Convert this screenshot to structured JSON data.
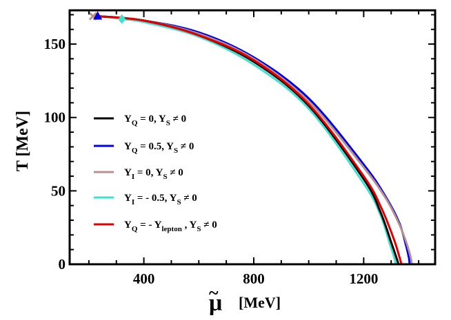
{
  "chart_data": {
    "type": "line",
    "xlabel": "μ̃ [MeV]",
    "ylabel": "T [MeV]",
    "xlabel_symbol": "μ",
    "xlabel_unit": "[MeV]",
    "xlim": [
      130,
      1460
    ],
    "ylim": [
      0,
      173
    ],
    "xticks": [
      400,
      800,
      1200
    ],
    "yticks": [
      0,
      50,
      100,
      150
    ],
    "xtick_labels": [
      "400",
      "800",
      "1200"
    ],
    "ytick_labels": [
      "0",
      "50",
      "100",
      "150"
    ],
    "grid": false,
    "legend_position": "center-left",
    "series": [
      {
        "name": "Y_Q = 0, Y_S ≠ 0",
        "legend": [
          "Y",
          "Q",
          " = 0, Y",
          "S",
          " ≠ 0"
        ],
        "color": "#000000",
        "marker": "triangle",
        "x": [
          232,
          400,
          600,
          800,
          1000,
          1200,
          1260,
          1300,
          1320,
          1325,
          1326
        ],
        "y": [
          169,
          166,
          156,
          138,
          108,
          58,
          36,
          15,
          4,
          1,
          0
        ]
      },
      {
        "name": "Y_Q = 0.5, Y_S ≠ 0",
        "legend": [
          "Y",
          "Q",
          " = 0.5, Y",
          "S",
          " ≠ 0"
        ],
        "color": "#0000e6",
        "marker": "triangle",
        "x": [
          232,
          400,
          600,
          800,
          1000,
          1200,
          1280,
          1330,
          1355,
          1365,
          1367
        ],
        "y": [
          169,
          166,
          158,
          141,
          113,
          68,
          46,
          28,
          12,
          4,
          0
        ]
      },
      {
        "name": "Y_I = 0, Y_S ≠ 0",
        "legend": [
          "Y",
          "I",
          " = 0, Y",
          "S",
          " ≠  0"
        ],
        "color": "#b8918c",
        "marker": "cross",
        "x": [
          215,
          400,
          600,
          800,
          1000,
          1200,
          1280,
          1330,
          1360,
          1372,
          1375
        ],
        "y": [
          169,
          166,
          157,
          140,
          111,
          66,
          45,
          27,
          12,
          4,
          0
        ]
      },
      {
        "name": "Y_I = - 0.5, Y_S ≠ 0",
        "legend": [
          "Y",
          "I",
          " = - 0.5, Y",
          "S",
          " ≠ 0"
        ],
        "color": "#40e0d0",
        "marker": "diamond",
        "x": [
          320,
          400,
          600,
          800,
          1000,
          1200,
          1260,
          1295,
          1312,
          1316,
          1317
        ],
        "y": [
          167,
          165,
          155,
          136,
          106,
          55,
          34,
          14,
          4,
          1,
          0
        ]
      },
      {
        "name": "Y_Q = - Y_lepton , Y_S ≠ 0",
        "legend": [
          "Y",
          "Q",
          " = - Y",
          "lepton",
          " , Y",
          "S",
          " ≠ 0"
        ],
        "color": "#e00000",
        "marker": "triangle",
        "x": [
          232,
          400,
          600,
          800,
          1000,
          1200,
          1265,
          1310,
          1330,
          1336,
          1337
        ],
        "y": [
          169,
          166,
          156,
          139,
          109,
          60,
          38,
          17,
          5,
          1,
          0
        ]
      }
    ]
  }
}
